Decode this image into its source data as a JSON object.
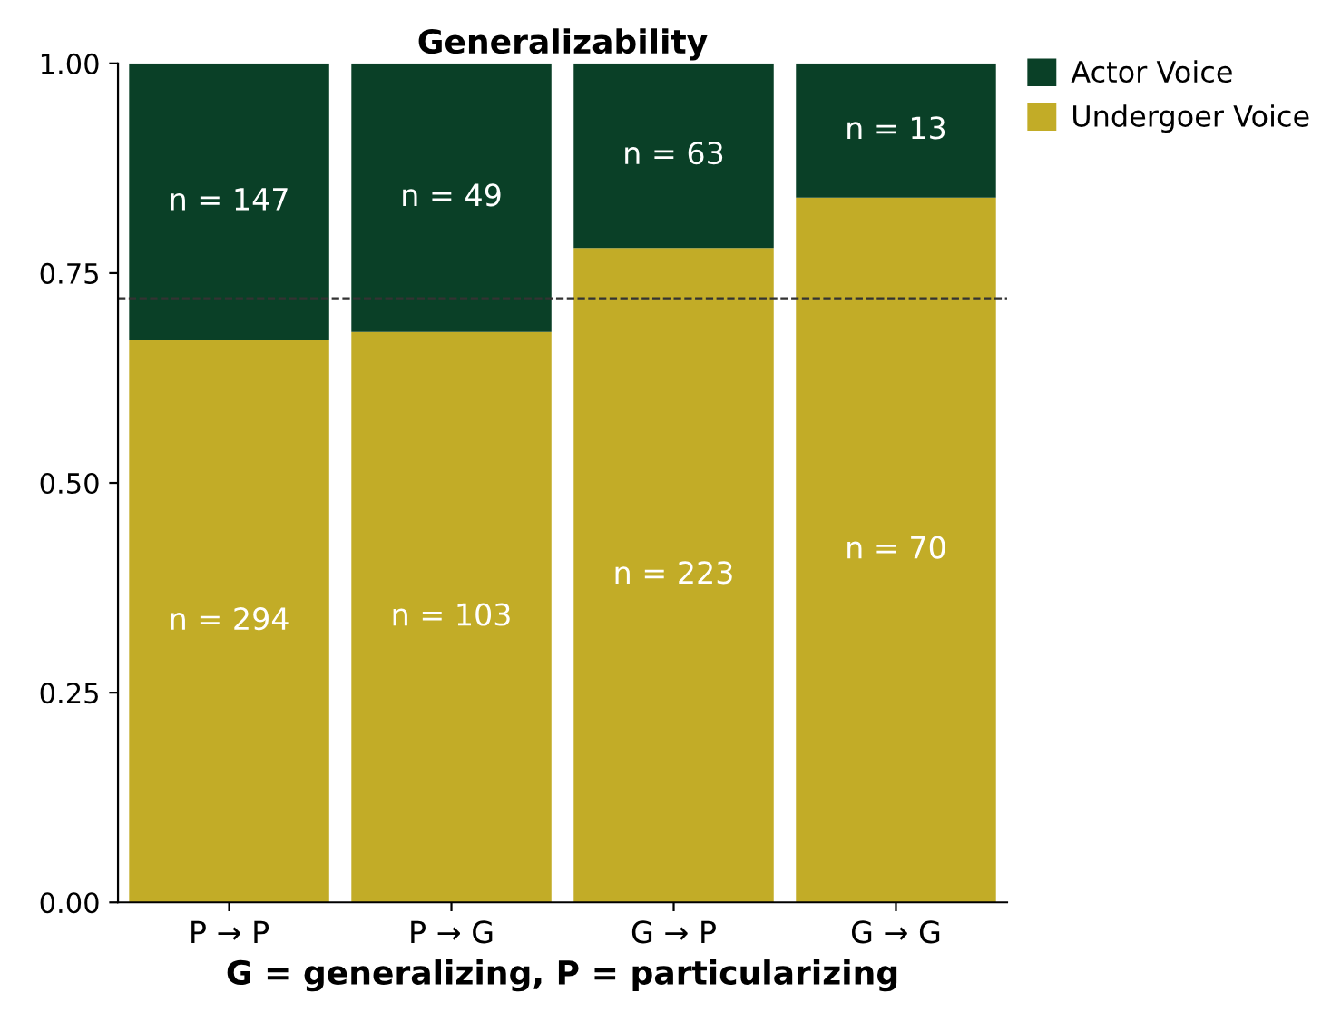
{
  "chart_data": {
    "type": "bar",
    "title": "Generalizability",
    "xlabel": "G = generalizing, P = particularizing",
    "categories": [
      "P → P",
      "P → G",
      "G → P",
      "G → G"
    ],
    "stacked": true,
    "series": [
      {
        "name": "Undergoer Voice",
        "color": "#c2ac27",
        "values": [
          0.67,
          0.68,
          0.78,
          0.84
        ]
      },
      {
        "name": "Actor Voice",
        "color": "#0a4027",
        "values": [
          0.33,
          0.32,
          0.22,
          0.16
        ]
      }
    ],
    "annotations": [
      "n = 294",
      "n = 103",
      "n = 223",
      "n = 70",
      "n = 147",
      "n = 49",
      "n = 63",
      "n = 13"
    ],
    "ylim": [
      0,
      1
    ],
    "yticks": [
      {
        "value": 0,
        "label": "0.00"
      },
      {
        "value": 0.25,
        "label": "0.25"
      },
      {
        "value": 0.5,
        "label": "0.50"
      },
      {
        "value": 0.75,
        "label": "0.75"
      },
      {
        "value": 1,
        "label": "1.00"
      }
    ],
    "ref_lines": [
      {
        "axis": "y",
        "value": 0.72,
        "color": "#333333",
        "line_style": "dashed"
      }
    ],
    "legend": "top right",
    "grid": false
  }
}
